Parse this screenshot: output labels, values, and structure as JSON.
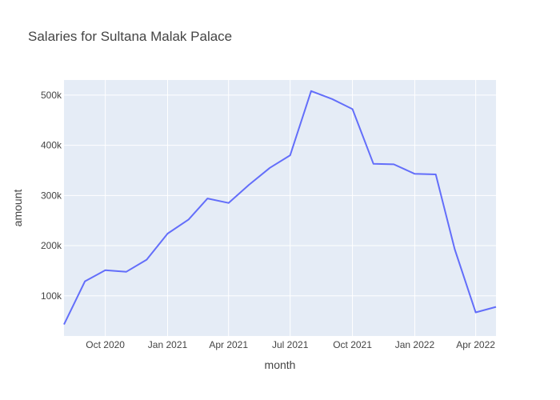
{
  "chart_data": {
    "type": "line",
    "title": "Salaries for Sultana Malak Palace",
    "xlabel": "month",
    "ylabel": "amount",
    "x_tick_labels": [
      "Oct 2020",
      "Jan 2021",
      "Apr 2021",
      "Jul 2021",
      "Oct 2021",
      "Jan 2022",
      "Apr 2022"
    ],
    "y_tick_labels": [
      "100k",
      "200k",
      "300k",
      "400k",
      "500k"
    ],
    "y_ticks": [
      100000,
      200000,
      300000,
      400000,
      500000
    ],
    "xlim": [
      "2020-08-01",
      "2022-05-01"
    ],
    "ylim": [
      20000,
      530000
    ],
    "grid": true,
    "colors": {
      "line": "#636efa",
      "plot_bg": "#e5ecf6",
      "grid": "#ffffff"
    },
    "series": [
      {
        "x": [
          "2020-08-01",
          "2020-09-01",
          "2020-10-01",
          "2020-11-01",
          "2020-12-01",
          "2021-01-01",
          "2021-02-01",
          "2021-03-01",
          "2021-04-01",
          "2021-05-01",
          "2021-06-01",
          "2021-07-01",
          "2021-08-01",
          "2021-09-01",
          "2021-10-01",
          "2021-11-01",
          "2021-12-01",
          "2022-01-01",
          "2022-02-01",
          "2022-03-01",
          "2022-04-01",
          "2022-05-01"
        ],
        "values": [
          43000,
          129000,
          151000,
          148000,
          172000,
          224000,
          252000,
          294000,
          285000,
          321000,
          355000,
          380000,
          508000,
          492000,
          472000,
          363000,
          362000,
          343000,
          342000,
          193000,
          67000,
          78000
        ]
      }
    ]
  }
}
